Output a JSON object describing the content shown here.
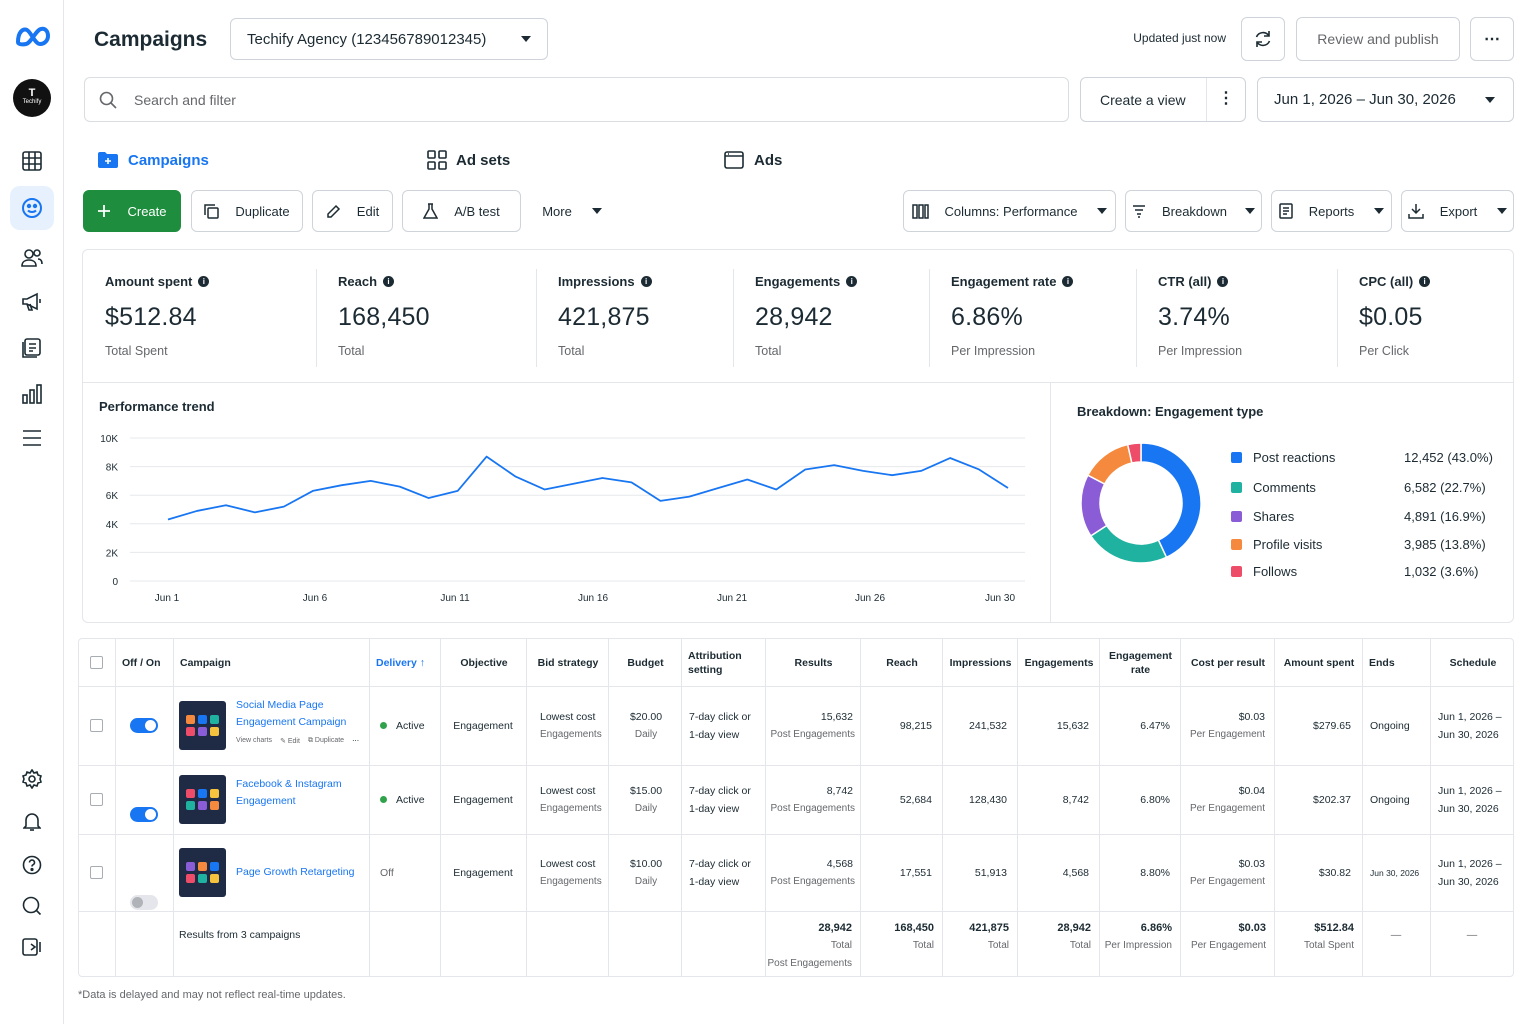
{
  "header": {
    "title": "Campaigns",
    "account": "Techify Agency (123456789012345)",
    "updated": "Updated just now",
    "review_publish": "Review and publish"
  },
  "avatar": {
    "initial": "T",
    "name": "Techify"
  },
  "search": {
    "placeholder": "Search and filter"
  },
  "create_view": "Create a view",
  "date_range": "Jun 1, 2026 – Jun 30, 2026",
  "tabs": [
    {
      "label": "Campaigns",
      "icon": "campaigns-folder-icon"
    },
    {
      "label": "Ad sets",
      "icon": "grid-icon"
    },
    {
      "label": "Ads",
      "icon": "ad-window-icon"
    }
  ],
  "toolbar": {
    "create": "Create",
    "duplicate": "Duplicate",
    "edit": "Edit",
    "ab_test": "A/B test",
    "more": "More",
    "columns": "Columns: Performance",
    "breakdown": "Breakdown",
    "reports": "Reports",
    "export": "Export"
  },
  "metrics": [
    {
      "label": "Amount spent",
      "value": "$512.84",
      "sub": "Total Spent"
    },
    {
      "label": "Reach",
      "value": "168,450",
      "sub": "Total"
    },
    {
      "label": "Impressions",
      "value": "421,875",
      "sub": "Total"
    },
    {
      "label": "Engagements",
      "value": "28,942",
      "sub": "Total"
    },
    {
      "label": "Engagement rate",
      "value": "6.86%",
      "sub": "Per Impression"
    },
    {
      "label": "CTR (all)",
      "value": "3.74%",
      "sub": "Per Impression"
    },
    {
      "label": "CPC (all)",
      "value": "$0.05",
      "sub": "Per Click"
    }
  ],
  "trend": {
    "title": "Performance trend",
    "ytick_labels": [
      "0",
      "2K",
      "4K",
      "6K",
      "8K",
      "10K"
    ],
    "xtick_labels": [
      "Jun 1",
      "Jun 6",
      "Jun 11",
      "Jun 16",
      "Jun 21",
      "Jun 26",
      "Jun 30"
    ]
  },
  "chart_data": [
    {
      "type": "line",
      "title": "Performance trend",
      "x": [
        "Jun 1",
        "Jun 2",
        "Jun 3",
        "Jun 4",
        "Jun 5",
        "Jun 6",
        "Jun 7",
        "Jun 8",
        "Jun 9",
        "Jun 10",
        "Jun 11",
        "Jun 12",
        "Jun 13",
        "Jun 14",
        "Jun 15",
        "Jun 16",
        "Jun 17",
        "Jun 18",
        "Jun 19",
        "Jun 20",
        "Jun 21",
        "Jun 22",
        "Jun 23",
        "Jun 24",
        "Jun 25",
        "Jun 26",
        "Jun 27",
        "Jun 28",
        "Jun 29",
        "Jun 30"
      ],
      "values": [
        4300,
        4900,
        5300,
        4800,
        5200,
        6300,
        6700,
        7000,
        6600,
        5800,
        6300,
        8700,
        7300,
        6400,
        6800,
        7200,
        6900,
        5600,
        5900,
        6500,
        7100,
        6400,
        7800,
        8100,
        7700,
        7400,
        7700,
        8600,
        7800,
        6500
      ],
      "ylim": [
        0,
        10000
      ],
      "grid": true
    },
    {
      "type": "pie",
      "title": "Breakdown: Engagement type",
      "categories": [
        "Post reactions",
        "Comments",
        "Shares",
        "Profile visits",
        "Follows"
      ],
      "values": [
        12452,
        6582,
        4891,
        3985,
        1032
      ],
      "value_labels": [
        "12,452 (43.0%)",
        "6,582 (22.7%)",
        "4,891 (16.9%)",
        "3,985 (13.8%)",
        "1,032 (3.6%)"
      ],
      "colors": [
        "#1876f2",
        "#20b2a0",
        "#8a5cd6",
        "#f5893d",
        "#ee4d6a"
      ],
      "legend": "right"
    }
  ],
  "table": {
    "headers": {
      "off_on": "Off / On",
      "campaign": "Campaign",
      "delivery": "Delivery ↑",
      "objective": "Objective",
      "bid": "Bid strategy",
      "budget": "Budget",
      "attr": "Attribution setting",
      "results": "Results",
      "reach": "Reach",
      "impressions": "Impressions",
      "engagements": "Engagements",
      "eng_rate": "Engagement rate",
      "cpr": "Cost per result",
      "spent": "Amount spent",
      "ends": "Ends",
      "schedule": "Schedule"
    },
    "rows": [
      {
        "name": "Social Media Page Engagement Campaign",
        "actions": {
          "view_charts": "View charts",
          "edit": "Edit",
          "duplicate": "Duplicate",
          "more": "⋯"
        },
        "on": true,
        "delivery": "Active",
        "objective": "Engagement",
        "bid": "Lowest cost",
        "bid_sub": "Engagements",
        "budget": "$20.00",
        "budget_sub": "Daily",
        "attr": "7-day click or 1-day view",
        "results": "15,632",
        "results_sub": "Post Engagements",
        "reach": "98,215",
        "impressions": "241,532",
        "engagements": "15,632",
        "eng_rate": "6.47%",
        "cpr": "$0.03",
        "cpr_sub": "Per Engagement",
        "spent": "$279.65",
        "ends": "Ongoing",
        "schedule": "Jun 1, 2026 – Jun 30, 2026"
      },
      {
        "name": "Facebook & Instagram Engagement",
        "on": true,
        "delivery": "Active",
        "objective": "Engagement",
        "bid": "Lowest cost",
        "bid_sub": "Engagements",
        "budget": "$15.00",
        "budget_sub": "Daily",
        "attr": "7-day click or 1-day view",
        "results": "8,742",
        "results_sub": "Post Engagements",
        "reach": "52,684",
        "impressions": "128,430",
        "engagements": "8,742",
        "eng_rate": "6.80%",
        "cpr": "$0.04",
        "cpr_sub": "Per Engagement",
        "spent": "$202.37",
        "ends": "Ongoing",
        "schedule": "Jun 1, 2026 – Jun 30, 2026"
      },
      {
        "name": "Page Growth Retargeting",
        "on": false,
        "delivery": "Off",
        "objective": "Engagement",
        "bid": "Lowest cost",
        "bid_sub": "Engagements",
        "budget": "$10.00",
        "budget_sub": "Daily",
        "attr": "7-day click or 1-day view",
        "results": "4,568",
        "results_sub": "Post Engagements",
        "reach": "17,551",
        "impressions": "51,913",
        "engagements": "4,568",
        "eng_rate": "8.80%",
        "cpr": "$0.03",
        "cpr_sub": "Per Engagement",
        "spent": "$30.82",
        "ends": "Jun 30, 2026",
        "schedule": "Jun 1, 2026 – Jun 30, 2026"
      }
    ],
    "totals": {
      "label": "Results from 3 campaigns",
      "results": "28,942",
      "results_sub": "Total",
      "results_sub2": "Post Engagements",
      "reach": "168,450",
      "reach_sub": "Total",
      "impressions": "421,875",
      "impressions_sub": "Total",
      "engagements": "28,942",
      "engagements_sub": "Total",
      "eng_rate": "6.86%",
      "eng_rate_sub": "Per Impression",
      "cpr": "$0.03",
      "cpr_sub": "Per Engagement",
      "spent": "$512.84",
      "spent_sub": "Total Spent",
      "ends": "—",
      "schedule": "—"
    }
  },
  "footnote": "*Data is delayed and may not reflect real-time updates.",
  "colors": {
    "accent": "#1876f2",
    "create": "#1e8e3e",
    "active": "#31a24c"
  }
}
